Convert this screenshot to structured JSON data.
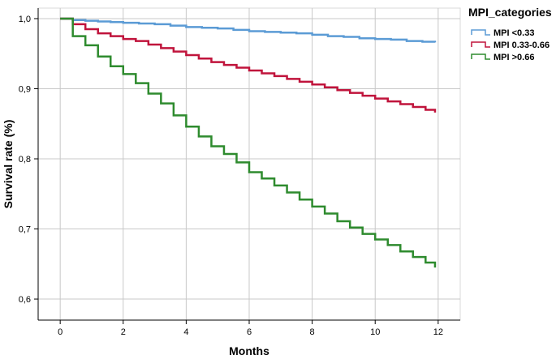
{
  "chart_data": {
    "type": "line",
    "step": true,
    "xlabel": "Months",
    "ylabel": "Survival rate (%)",
    "xlim": [
      -0.7,
      12.7
    ],
    "ylim": [
      0.57,
      1.015
    ],
    "xticks": [
      0,
      2,
      4,
      6,
      8,
      10,
      12
    ],
    "xtick_labels": [
      "0",
      "2",
      "4",
      "6",
      "8",
      "10",
      "12"
    ],
    "yticks": [
      0.6,
      0.7,
      0.8,
      0.9,
      1.0
    ],
    "ytick_labels": [
      "0,6",
      "0,7",
      "0,8",
      "0,9",
      "1,0"
    ],
    "grid": true,
    "legend_title": "MPI_categories",
    "legend_position": "top-right outside",
    "series": [
      {
        "name": "MPI <0.33",
        "color": "#5b9bd5",
        "x": [
          0,
          0.4,
          0.8,
          1.2,
          1.6,
          2.0,
          2.5,
          3.0,
          3.5,
          4.0,
          4.5,
          5.0,
          5.5,
          6.0,
          6.5,
          7.0,
          7.5,
          8.0,
          8.5,
          9.0,
          9.5,
          10.0,
          10.5,
          11.0,
          11.5,
          11.9
        ],
        "y": [
          1.0,
          0.998,
          0.997,
          0.996,
          0.995,
          0.994,
          0.993,
          0.992,
          0.99,
          0.988,
          0.987,
          0.986,
          0.984,
          0.982,
          0.981,
          0.98,
          0.979,
          0.977,
          0.975,
          0.974,
          0.972,
          0.971,
          0.97,
          0.968,
          0.967,
          0.966
        ]
      },
      {
        "name": "MPI 0.33-0.66",
        "color": "#c0143c",
        "x": [
          0,
          0.4,
          0.8,
          1.2,
          1.6,
          2.0,
          2.4,
          2.8,
          3.2,
          3.6,
          4.0,
          4.4,
          4.8,
          5.2,
          5.6,
          6.0,
          6.4,
          6.8,
          7.2,
          7.6,
          8.0,
          8.4,
          8.8,
          9.2,
          9.6,
          10.0,
          10.4,
          10.8,
          11.2,
          11.6,
          11.9
        ],
        "y": [
          1.0,
          0.992,
          0.985,
          0.979,
          0.975,
          0.971,
          0.968,
          0.963,
          0.958,
          0.953,
          0.948,
          0.943,
          0.938,
          0.934,
          0.93,
          0.926,
          0.922,
          0.918,
          0.914,
          0.91,
          0.906,
          0.902,
          0.898,
          0.894,
          0.89,
          0.886,
          0.882,
          0.878,
          0.874,
          0.87,
          0.866
        ]
      },
      {
        "name": "MPI >0.66",
        "color": "#2e8b2e",
        "x": [
          0,
          0.4,
          0.8,
          1.2,
          1.6,
          2.0,
          2.4,
          2.8,
          3.2,
          3.6,
          4.0,
          4.4,
          4.8,
          5.2,
          5.6,
          6.0,
          6.4,
          6.8,
          7.2,
          7.6,
          8.0,
          8.4,
          8.8,
          9.2,
          9.6,
          10.0,
          10.4,
          10.8,
          11.2,
          11.6,
          11.9
        ],
        "y": [
          1.0,
          0.975,
          0.962,
          0.946,
          0.932,
          0.921,
          0.908,
          0.893,
          0.879,
          0.862,
          0.846,
          0.832,
          0.818,
          0.807,
          0.795,
          0.781,
          0.772,
          0.762,
          0.752,
          0.742,
          0.732,
          0.722,
          0.711,
          0.702,
          0.693,
          0.685,
          0.677,
          0.668,
          0.66,
          0.652,
          0.645
        ]
      }
    ]
  }
}
